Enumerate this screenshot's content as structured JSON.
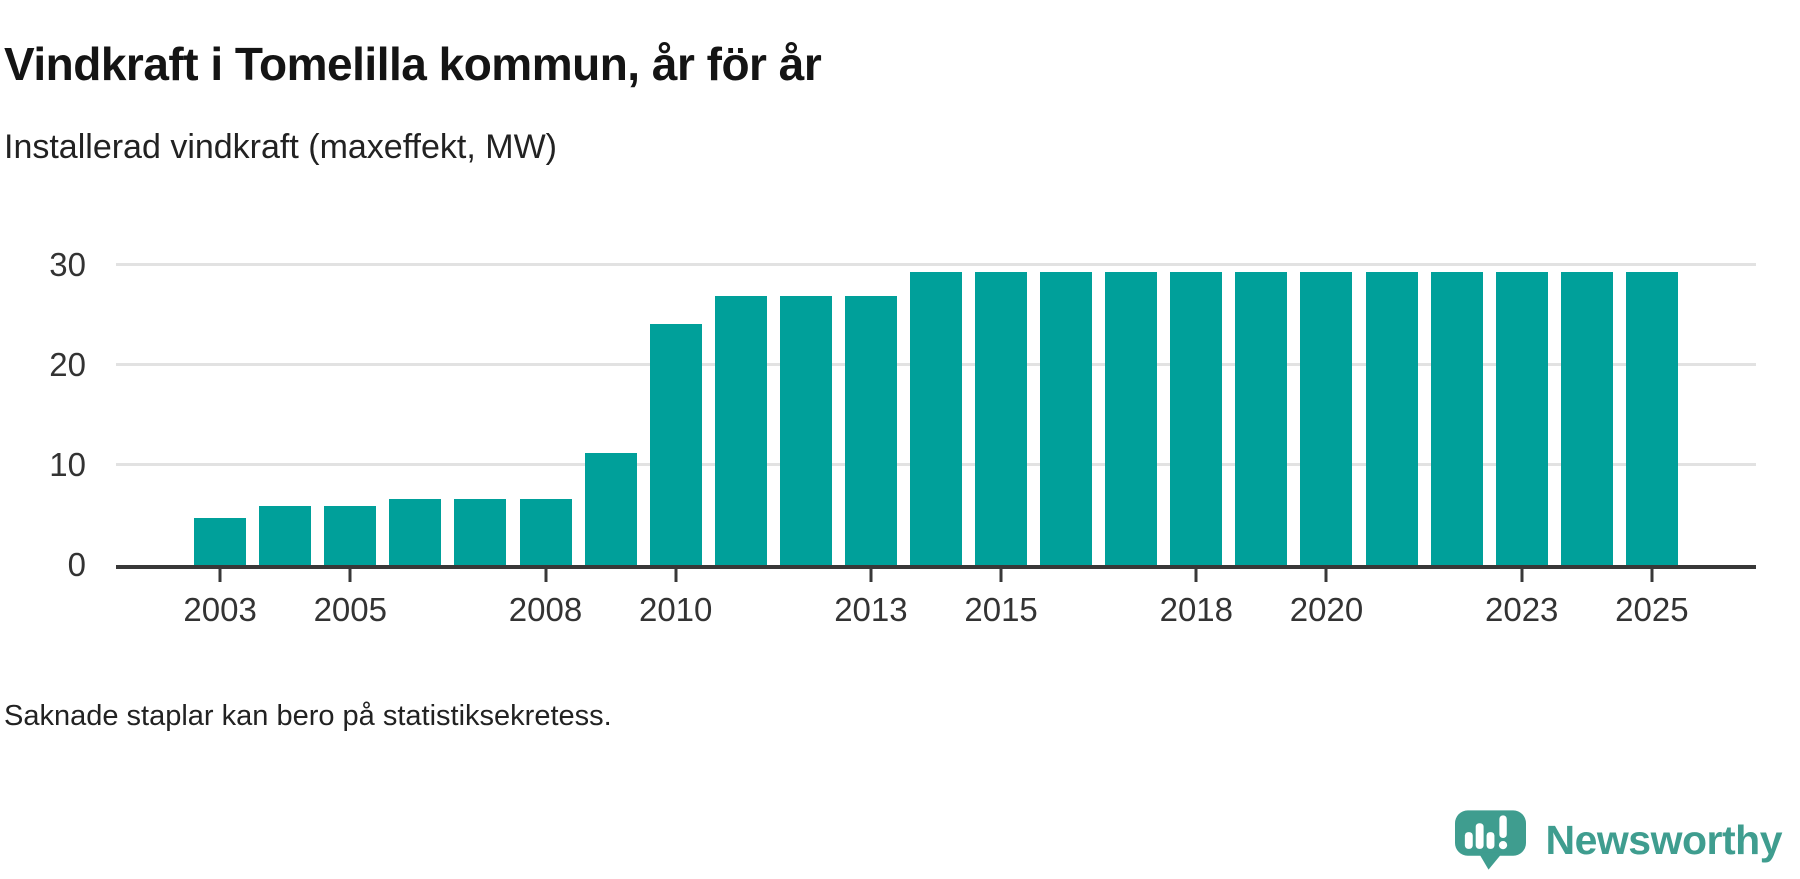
{
  "title": "Vindkraft i Tomelilla kommun, år för år",
  "subtitle": "Installerad vindkraft (maxeffekt, MW)",
  "footnote": "Saknade staplar kan bero på statistiksekretess.",
  "brand": {
    "name": "Newsworthy",
    "color": "#3f9d8f"
  },
  "colors": {
    "bar": "#00a09a",
    "grid": "#e2e2e2",
    "axis": "#383838",
    "tick_text": "#333333",
    "background": "#ffffff"
  },
  "chart_data": {
    "type": "bar",
    "title": "Vindkraft i Tomelilla kommun, år för år",
    "ylabel": "Installerad vindkraft (maxeffekt, MW)",
    "xlabel": "",
    "x": [
      2003,
      2004,
      2005,
      2006,
      2007,
      2008,
      2009,
      2010,
      2011,
      2012,
      2013,
      2014,
      2015,
      2016,
      2017,
      2018,
      2019,
      2020,
      2021,
      2022,
      2023,
      2024,
      2025
    ],
    "values": [
      4.7,
      5.9,
      5.9,
      6.6,
      6.6,
      6.6,
      11.2,
      24.1,
      26.9,
      26.9,
      26.9,
      29.3,
      29.3,
      29.3,
      29.3,
      29.3,
      29.3,
      29.3,
      29.3,
      29.3,
      29.3,
      29.3,
      29.3
    ],
    "x_ticks": [
      2003,
      2005,
      2008,
      2010,
      2013,
      2015,
      2018,
      2020,
      2023,
      2025
    ],
    "y_ticks": [
      0,
      10,
      20,
      30
    ],
    "ylim": [
      0,
      34.9
    ],
    "xlim": [
      2001.4,
      2026.6
    ],
    "grid": true,
    "legend": false,
    "bar_color": "#00a09a",
    "unit": "MW"
  }
}
